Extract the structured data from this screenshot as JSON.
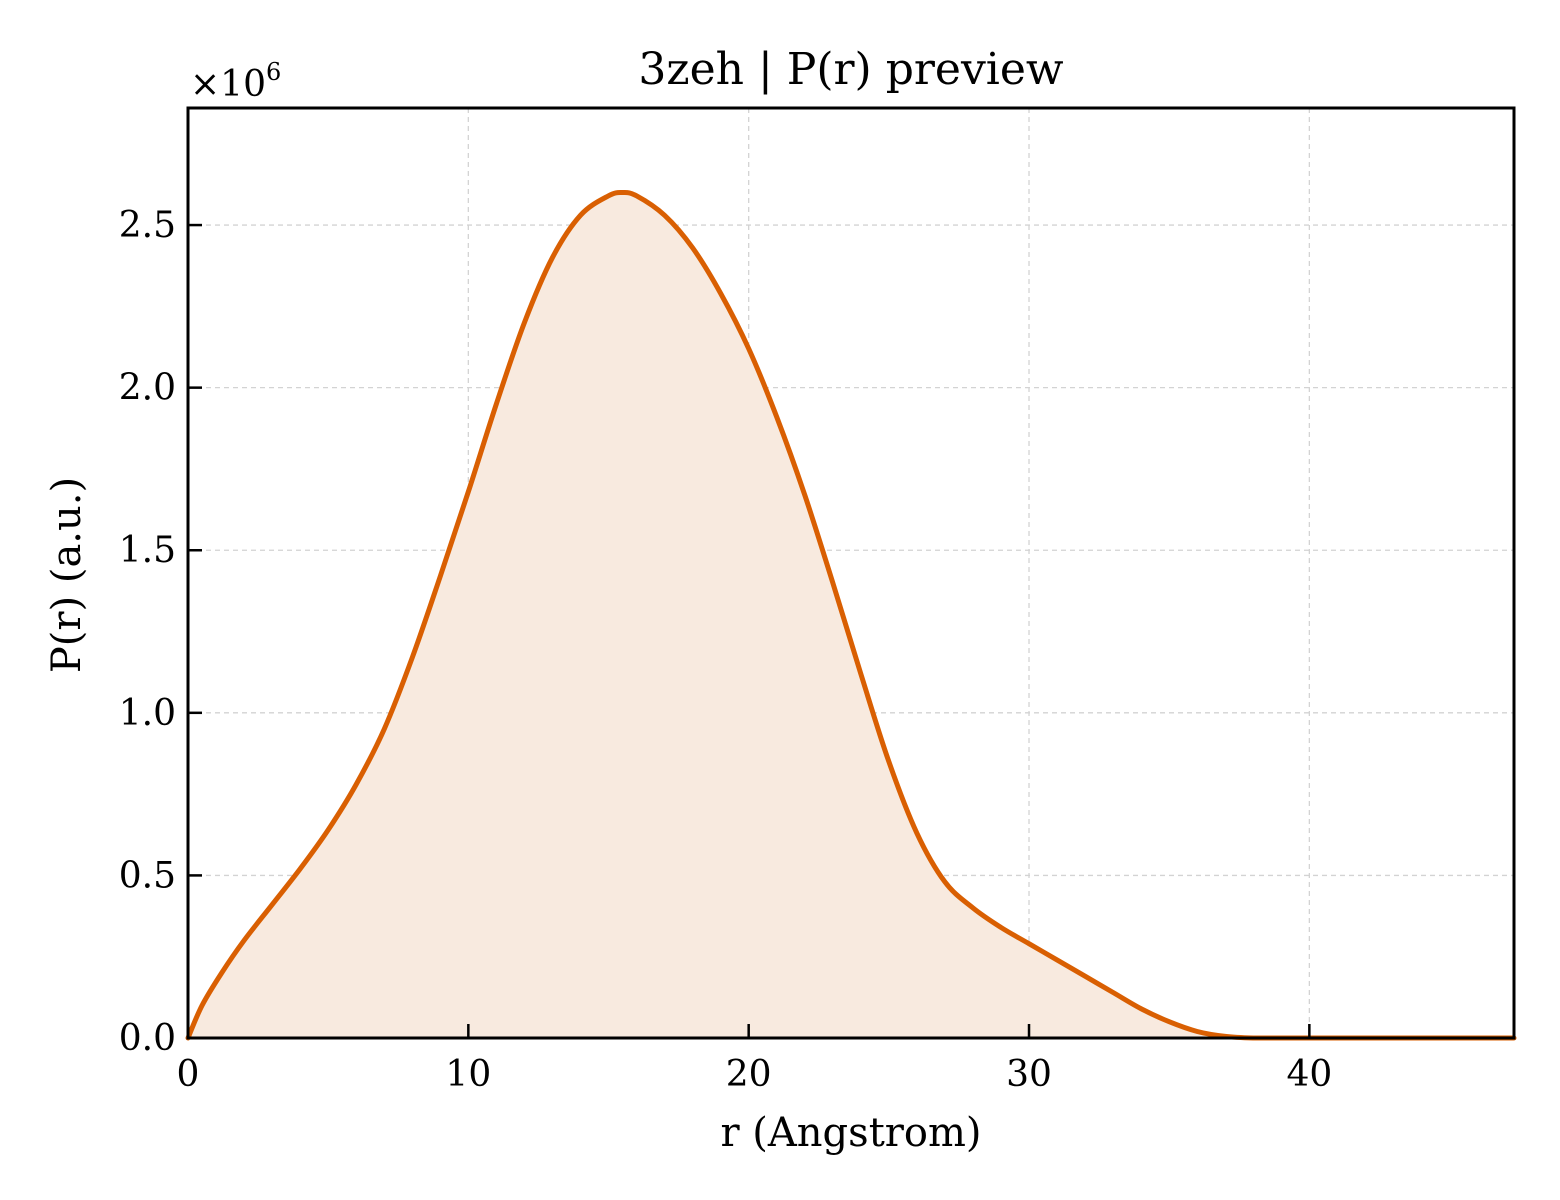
{
  "chart_data": {
    "type": "area",
    "title": "3zeh | P(r) preview",
    "xlabel": "r (Angstrom)",
    "ylabel": "P(r) (a.u.)",
    "y_multiplier": "×10",
    "y_multiplier_exponent": "6",
    "xlim": [
      0,
      47.3
    ],
    "ylim": [
      0,
      2.86
    ],
    "x_ticks": [
      0,
      10,
      20,
      30,
      40
    ],
    "x_tick_labels": [
      "0",
      "10",
      "20",
      "30",
      "40"
    ],
    "y_ticks": [
      0.0,
      0.5,
      1.0,
      1.5,
      2.0,
      2.5
    ],
    "y_tick_labels": [
      "0.0",
      "0.5",
      "1.0",
      "1.5",
      "2.0",
      "2.5"
    ],
    "grid": true,
    "line_color": "#d95f02",
    "fill_color": "#f8eadf",
    "x": [
      0,
      0.5,
      1.2,
      2,
      3,
      4,
      5,
      6,
      7,
      8,
      9,
      10,
      11,
      12,
      13,
      14,
      15,
      15.5,
      16,
      17,
      18,
      19,
      20,
      21,
      22,
      23,
      24,
      25,
      26,
      27,
      28,
      29,
      30,
      31,
      32,
      33,
      34,
      35,
      36,
      37,
      38,
      39,
      40,
      41,
      42,
      43,
      44,
      45,
      46,
      47.3
    ],
    "y": [
      0,
      0.1,
      0.2,
      0.3,
      0.41,
      0.52,
      0.64,
      0.78,
      0.95,
      1.17,
      1.42,
      1.68,
      1.95,
      2.2,
      2.4,
      2.53,
      2.59,
      2.6,
      2.59,
      2.53,
      2.43,
      2.29,
      2.12,
      1.91,
      1.67,
      1.4,
      1.12,
      0.85,
      0.63,
      0.48,
      0.4,
      0.34,
      0.29,
      0.24,
      0.19,
      0.14,
      0.09,
      0.05,
      0.02,
      0.005,
      0.0,
      0.0,
      0.0,
      0.0,
      0.0,
      0.0,
      0.0,
      0.0,
      0.0,
      0.0
    ]
  }
}
